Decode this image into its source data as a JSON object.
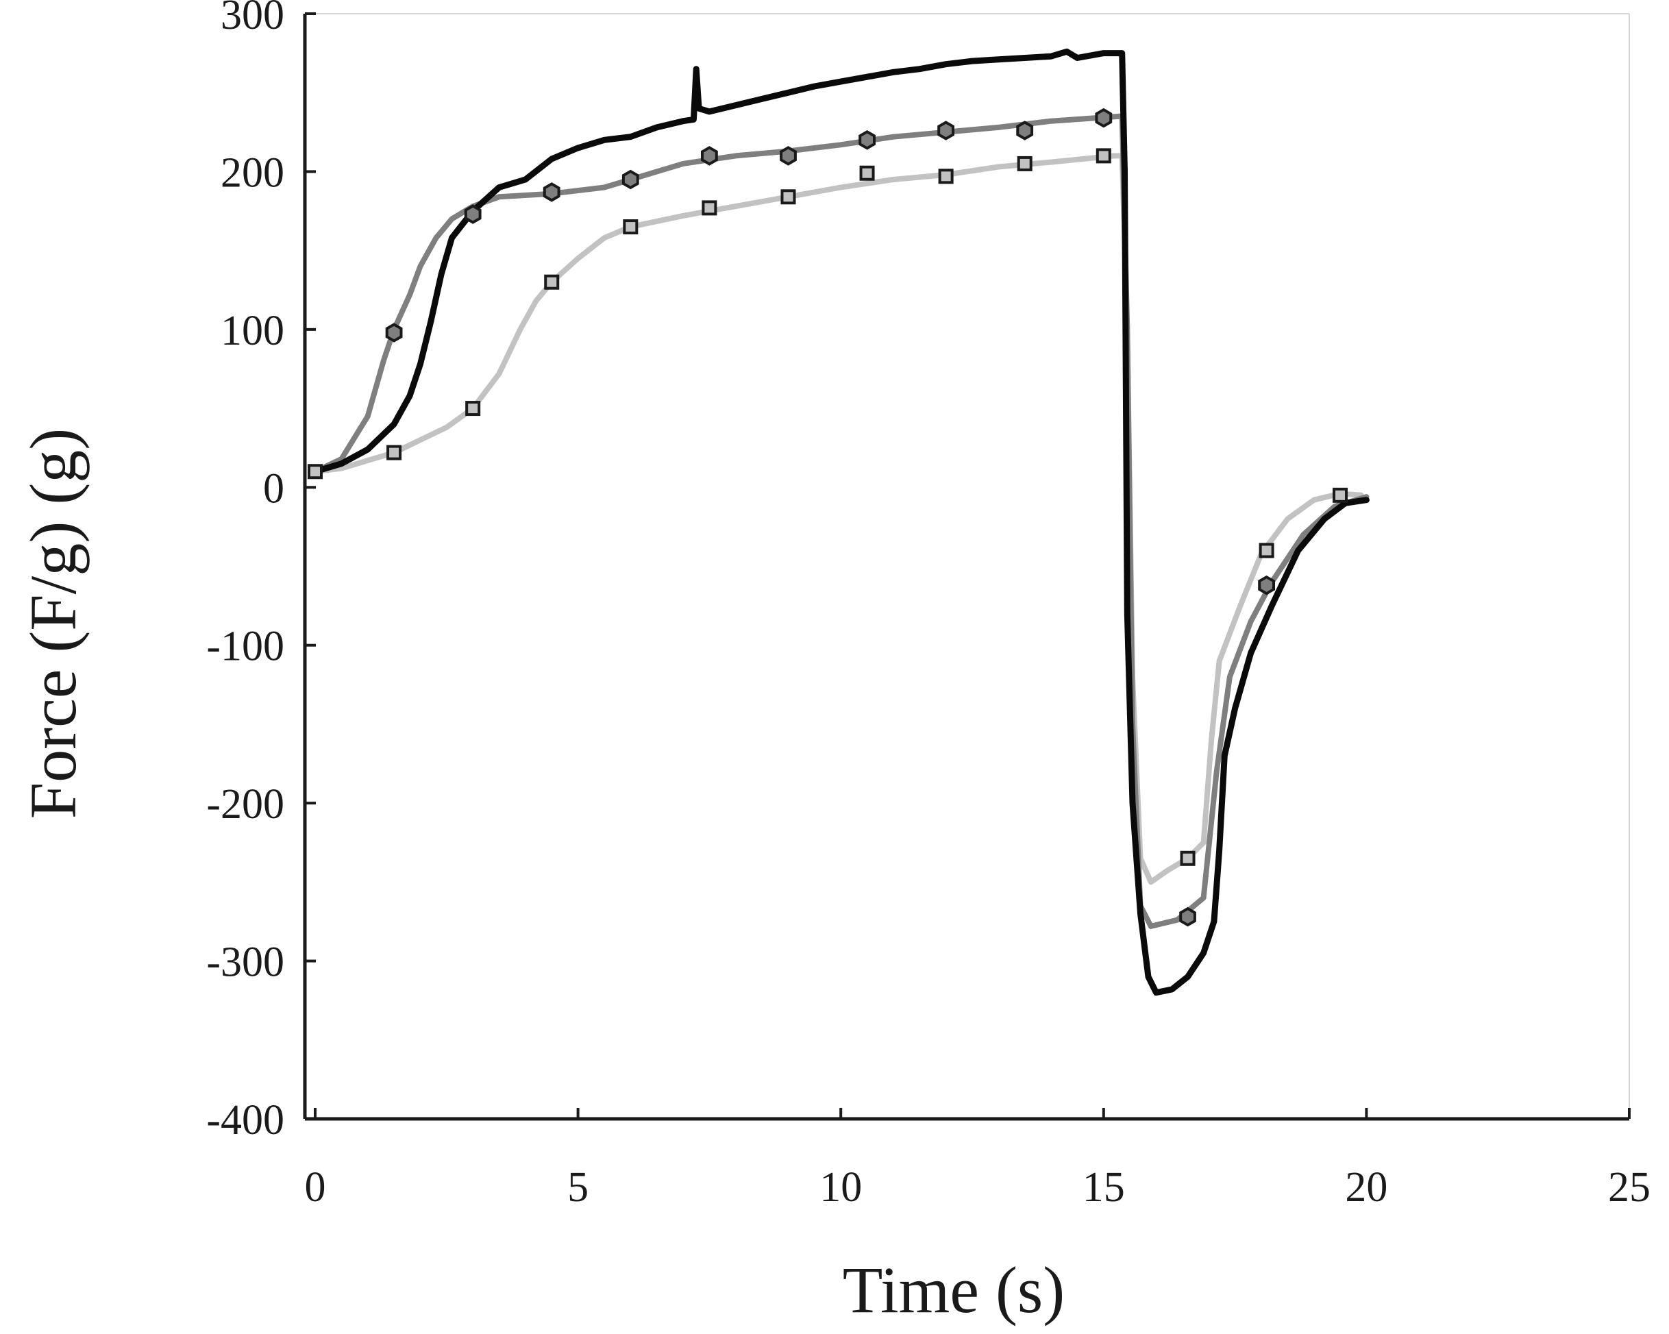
{
  "chart_data": {
    "type": "line",
    "title": "",
    "xlabel": "Time (s)",
    "ylabel": "Force (F/g) (g)",
    "xlim": [
      0,
      25
    ],
    "ylim": [
      -400,
      300
    ],
    "xticks": [
      0,
      5,
      10,
      15,
      20,
      25
    ],
    "yticks": [
      300,
      200,
      100,
      0,
      -100,
      -200,
      -300,
      -400
    ],
    "grid": false,
    "legend": "none",
    "colors": {
      "axis": "#1a1a1a",
      "black": "#0a0a0a",
      "gray": "#7f7f7f",
      "light": "#c2c2c2"
    },
    "series": [
      {
        "name": "light-gray-square",
        "color": "#c2c2c2",
        "marker": "square",
        "points": [
          [
            0,
            10
          ],
          [
            0.5,
            12
          ],
          [
            1.5,
            22
          ],
          [
            2.5,
            38
          ],
          [
            3,
            50
          ],
          [
            3.5,
            72
          ],
          [
            3.9,
            100
          ],
          [
            4.2,
            118
          ],
          [
            4.5,
            130
          ],
          [
            5,
            145
          ],
          [
            5.5,
            158
          ],
          [
            6,
            165
          ],
          [
            7,
            172
          ],
          [
            8,
            178
          ],
          [
            9,
            184
          ],
          [
            10,
            190
          ],
          [
            11,
            195
          ],
          [
            12,
            198
          ],
          [
            13,
            203
          ],
          [
            14,
            206
          ],
          [
            15.2,
            210
          ],
          [
            15.35,
            210
          ],
          [
            15.45,
            100
          ],
          [
            15.55,
            -120
          ],
          [
            15.7,
            -235
          ],
          [
            15.9,
            -250
          ],
          [
            16.2,
            -243
          ],
          [
            16.6,
            -235
          ],
          [
            16.9,
            -225
          ],
          [
            17.05,
            -160
          ],
          [
            17.2,
            -110
          ],
          [
            17.6,
            -75
          ],
          [
            18,
            -42
          ],
          [
            18.5,
            -20
          ],
          [
            19,
            -8
          ],
          [
            19.5,
            -4
          ],
          [
            19.9,
            -5
          ]
        ],
        "markers": [
          [
            0,
            10
          ],
          [
            1.5,
            22
          ],
          [
            3,
            50
          ],
          [
            4.5,
            130
          ],
          [
            6,
            165
          ],
          [
            7.5,
            177
          ],
          [
            9,
            184
          ],
          [
            10.5,
            199
          ],
          [
            12,
            197
          ],
          [
            13.5,
            205
          ],
          [
            15,
            210
          ],
          [
            16.6,
            -235
          ],
          [
            18.1,
            -40
          ],
          [
            19.5,
            -5
          ]
        ]
      },
      {
        "name": "dark-gray-diamond",
        "color": "#7f7f7f",
        "marker": "diamond",
        "points": [
          [
            0,
            10
          ],
          [
            0.5,
            18
          ],
          [
            1,
            45
          ],
          [
            1.3,
            80
          ],
          [
            1.5,
            100
          ],
          [
            1.8,
            122
          ],
          [
            2,
            140
          ],
          [
            2.3,
            158
          ],
          [
            2.6,
            170
          ],
          [
            3,
            178
          ],
          [
            3.5,
            184
          ],
          [
            4.5,
            186
          ],
          [
            5.5,
            190
          ],
          [
            6,
            195
          ],
          [
            7,
            205
          ],
          [
            8,
            210
          ],
          [
            9,
            213
          ],
          [
            10,
            217
          ],
          [
            11,
            222
          ],
          [
            12,
            225
          ],
          [
            13,
            228
          ],
          [
            14,
            232
          ],
          [
            15.3,
            235
          ],
          [
            15.35,
            235
          ],
          [
            15.45,
            100
          ],
          [
            15.55,
            -150
          ],
          [
            15.7,
            -265
          ],
          [
            15.9,
            -278
          ],
          [
            16.4,
            -274
          ],
          [
            16.9,
            -260
          ],
          [
            17.15,
            -180
          ],
          [
            17.4,
            -120
          ],
          [
            17.8,
            -85
          ],
          [
            18.2,
            -60
          ],
          [
            18.8,
            -30
          ],
          [
            19.4,
            -12
          ],
          [
            20,
            -6
          ]
        ],
        "markers": [
          [
            1.5,
            98
          ],
          [
            3,
            173
          ],
          [
            4.5,
            187
          ],
          [
            6,
            195
          ],
          [
            7.5,
            210
          ],
          [
            9,
            210
          ],
          [
            10.5,
            220
          ],
          [
            12,
            226
          ],
          [
            13.5,
            226
          ],
          [
            15,
            234
          ],
          [
            16.6,
            -272
          ],
          [
            18.1,
            -62
          ]
        ]
      },
      {
        "name": "black",
        "color": "#0a0a0a",
        "marker": "none",
        "points": [
          [
            0,
            10
          ],
          [
            0.5,
            15
          ],
          [
            1,
            24
          ],
          [
            1.5,
            40
          ],
          [
            1.8,
            58
          ],
          [
            2,
            78
          ],
          [
            2.2,
            105
          ],
          [
            2.4,
            135
          ],
          [
            2.6,
            158
          ],
          [
            3,
            175
          ],
          [
            3.5,
            190
          ],
          [
            4,
            195
          ],
          [
            4.5,
            208
          ],
          [
            5,
            215
          ],
          [
            5.5,
            220
          ],
          [
            6,
            222
          ],
          [
            6.5,
            228
          ],
          [
            7,
            232
          ],
          [
            7.2,
            233
          ],
          [
            7.25,
            265
          ],
          [
            7.3,
            240
          ],
          [
            7.5,
            238
          ],
          [
            8,
            242
          ],
          [
            8.5,
            246
          ],
          [
            9,
            250
          ],
          [
            9.5,
            254
          ],
          [
            10,
            257
          ],
          [
            10.5,
            260
          ],
          [
            11,
            263
          ],
          [
            11.5,
            265
          ],
          [
            12,
            268
          ],
          [
            12.5,
            270
          ],
          [
            13,
            271
          ],
          [
            13.5,
            272
          ],
          [
            14,
            273
          ],
          [
            14.3,
            276
          ],
          [
            14.5,
            272
          ],
          [
            15,
            275
          ],
          [
            15.35,
            275
          ],
          [
            15.4,
            200
          ],
          [
            15.45,
            -80
          ],
          [
            15.55,
            -200
          ],
          [
            15.7,
            -270
          ],
          [
            15.85,
            -310
          ],
          [
            16,
            -320
          ],
          [
            16.3,
            -318
          ],
          [
            16.6,
            -310
          ],
          [
            16.9,
            -295
          ],
          [
            17.1,
            -275
          ],
          [
            17.2,
            -230
          ],
          [
            17.3,
            -170
          ],
          [
            17.5,
            -140
          ],
          [
            17.8,
            -105
          ],
          [
            18.2,
            -75
          ],
          [
            18.7,
            -40
          ],
          [
            19.2,
            -20
          ],
          [
            19.6,
            -10
          ],
          [
            20,
            -8
          ]
        ],
        "markers": []
      }
    ]
  }
}
